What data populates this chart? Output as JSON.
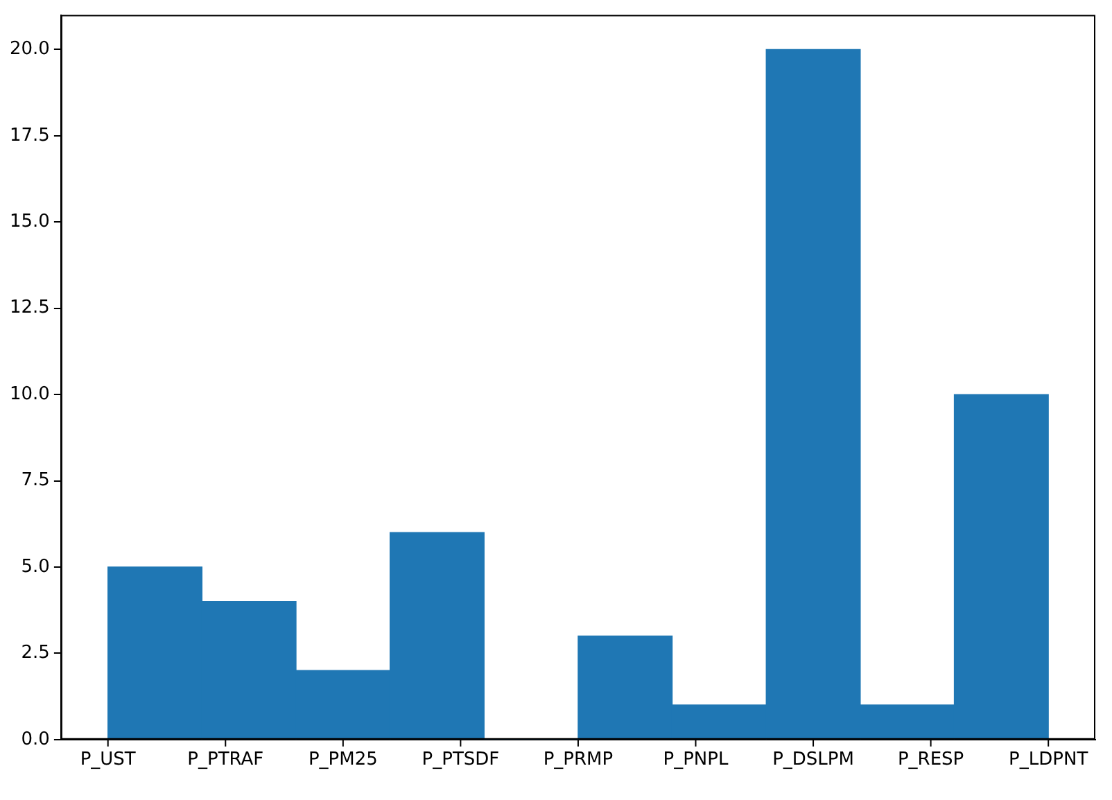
{
  "chart_data": {
    "type": "bar",
    "color": "#1f77b4",
    "grid": false,
    "categories": [
      null,
      null,
      null,
      null,
      null,
      null,
      null,
      null,
      null,
      null
    ],
    "values": [
      5,
      4,
      2,
      6,
      0,
      3,
      1,
      20,
      1,
      10
    ],
    "annotations": [
      "P_UST",
      "P_PTRAF",
      "P_PM25",
      "P_PTSDF",
      "P_PRMP",
      "P_PNPL",
      "P_DSLPM",
      "P_RESP",
      "P_LDPNT"
    ],
    "ylim": [
      0,
      21
    ],
    "yticks": [
      {
        "value": 0,
        "label": "0.0"
      },
      {
        "value": 2.5,
        "label": "2.5"
      },
      {
        "value": 5,
        "label": "5.0"
      },
      {
        "value": 7.5,
        "label": "7.5"
      },
      {
        "value": 10,
        "label": "10.0"
      },
      {
        "value": 12.5,
        "label": "12.5"
      },
      {
        "value": 15,
        "label": "15.0"
      },
      {
        "value": 17.5,
        "label": "17.5"
      },
      {
        "value": 20,
        "label": "20.0"
      }
    ]
  }
}
